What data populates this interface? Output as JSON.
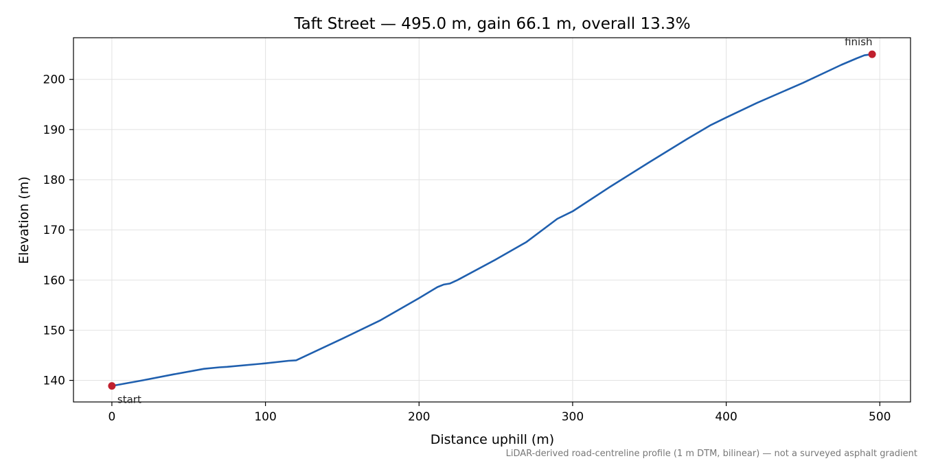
{
  "chart_data": {
    "type": "line",
    "title": "Taft Street — 495.0 m, gain 66.1 m, overall 13.3%",
    "xlabel": "Distance uphill (m)",
    "ylabel": "Elevation (m)",
    "xlim": [
      -25,
      520
    ],
    "ylim": [
      135.7,
      208.3
    ],
    "xticks": [
      0,
      100,
      200,
      300,
      400,
      500
    ],
    "yticks": [
      140,
      150,
      160,
      170,
      180,
      190,
      200
    ],
    "grid": true,
    "line_color": "#1f5fae",
    "marker_color": "#c0202e",
    "series": [
      {
        "x": [
          0,
          20,
          40,
          60,
          70,
          75,
          100,
          115,
          120,
          150,
          175,
          200,
          212,
          216,
          220,
          225,
          250,
          270,
          290,
          300,
          325,
          350,
          375,
          390,
          400,
          420,
          450,
          475,
          485,
          490,
          495
        ],
        "y": [
          138.9,
          140.0,
          141.2,
          142.3,
          142.6,
          142.7,
          143.4,
          143.9,
          144.0,
          148.3,
          152.0,
          156.4,
          158.6,
          159.1,
          159.3,
          160.0,
          164.1,
          167.6,
          172.2,
          173.7,
          178.7,
          183.5,
          188.2,
          190.9,
          192.4,
          195.3,
          199.3,
          202.9,
          204.2,
          204.8,
          205.0
        ]
      }
    ],
    "points": [
      {
        "label": "start",
        "x": 0,
        "y": 138.9
      },
      {
        "label": "finish",
        "x": 495,
        "y": 205.0
      }
    ],
    "footnote": "LiDAR-derived road-centreline profile (1 m DTM, bilinear) — not a surveyed asphalt gradient"
  }
}
